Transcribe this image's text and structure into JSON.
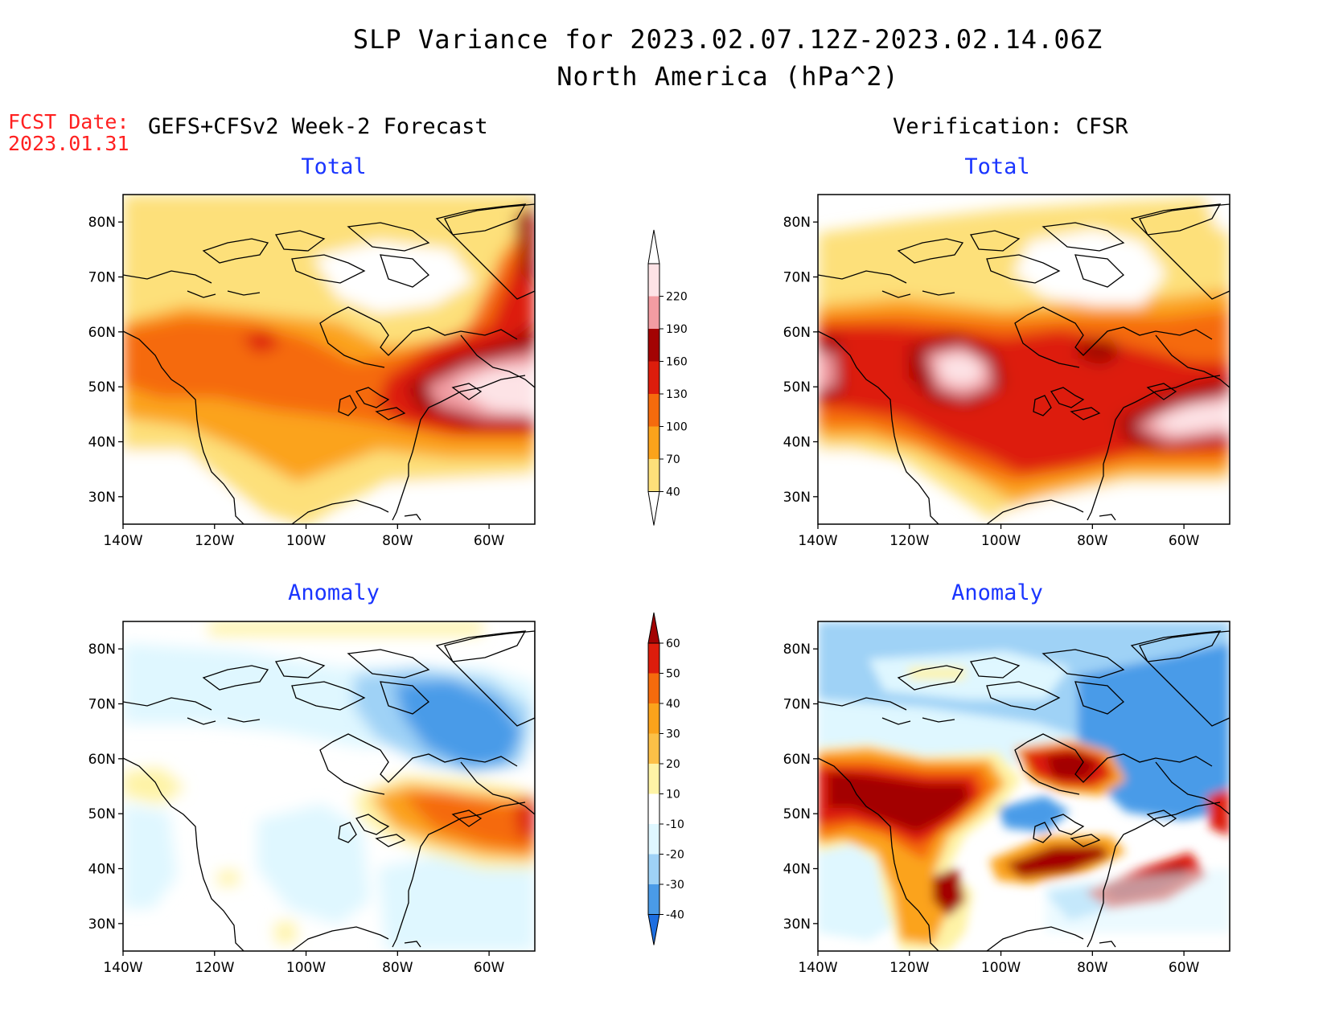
{
  "header": {
    "title": "SLP Variance for 2023.02.07.12Z-2023.02.14.06Z",
    "subtitle": "North America (hPa^2)",
    "fcst_label": "FCST Date:",
    "fcst_date": "2023.01.31",
    "left_heading": "GEFS+CFSv2 Week-2 Forecast",
    "right_heading": "Verification: CFSR"
  },
  "panels": {
    "fcst_total": "Total",
    "fcst_anom": "Anomaly",
    "ver_total": "Total",
    "ver_anom": "Anomaly"
  },
  "axes": {
    "lat_labels": [
      "80N",
      "70N",
      "60N",
      "50N",
      "40N",
      "30N"
    ],
    "lon_labels": [
      "140W",
      "120W",
      "100W",
      "80W",
      "60W"
    ],
    "lat_values": [
      80,
      70,
      60,
      50,
      40,
      30
    ],
    "lon_values": [
      -140,
      -120,
      -100,
      -80,
      -60
    ],
    "lon_range": [
      -140,
      -50
    ],
    "lat_range": [
      25,
      85
    ]
  },
  "colorbars": {
    "total": {
      "levels": [
        "40",
        "70",
        "100",
        "130",
        "160",
        "190",
        "220"
      ],
      "colors": [
        "#fde07a",
        "#fba31b",
        "#f56b0d",
        "#dd1d0c",
        "#a30303",
        "#f29ca2",
        "#fde3e6"
      ]
    },
    "anomaly": {
      "levels": [
        "60",
        "50",
        "40",
        "30",
        "20",
        "10",
        "-10",
        "-20",
        "-30",
        "-40"
      ],
      "colors": [
        "#a30303",
        "#dd1d0c",
        "#f56b0d",
        "#fba31b",
        "#fcc047",
        "#fef3a6",
        "#ffffff",
        "#dff7ff",
        "#9fd2f6",
        "#4a9be8",
        "#1d6ee0"
      ]
    }
  }
}
